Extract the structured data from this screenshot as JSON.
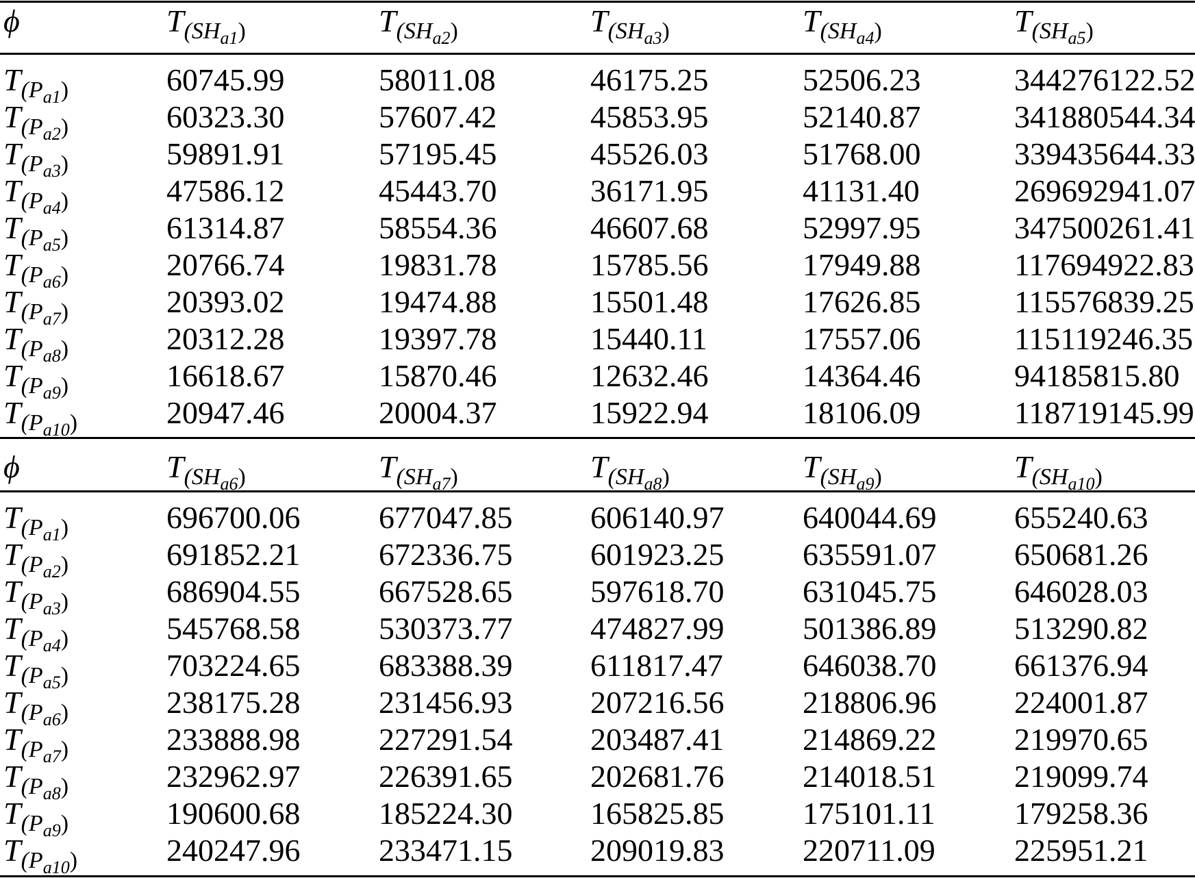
{
  "table": {
    "blocks": [
      {
        "corner": "ϕ",
        "column_headers": [
          {
            "main": "T",
            "open": "(SH",
            "index": "a1",
            "close": ")"
          },
          {
            "main": "T",
            "open": "(SH",
            "index": "a2",
            "close": ")"
          },
          {
            "main": "T",
            "open": "(SH",
            "index": "a3",
            "close": ")"
          },
          {
            "main": "T",
            "open": "(SH",
            "index": "a4",
            "close": ")"
          },
          {
            "main": "T",
            "open": "(SH",
            "index": "a5",
            "close": ")"
          }
        ],
        "rows": [
          {
            "label": {
              "main": "T",
              "open": "(P",
              "index": "a1",
              "close": ")"
            },
            "values": [
              "60745.99",
              "58011.08",
              "46175.25",
              "52506.23",
              "344276122.52"
            ]
          },
          {
            "label": {
              "main": "T",
              "open": "(P",
              "index": "a2",
              "close": ")"
            },
            "values": [
              "60323.30",
              "57607.42",
              "45853.95",
              "52140.87",
              "341880544.34"
            ]
          },
          {
            "label": {
              "main": "T",
              "open": "(P",
              "index": "a3",
              "close": ")"
            },
            "values": [
              "59891.91",
              "57195.45",
              "45526.03",
              "51768.00",
              "339435644.33"
            ]
          },
          {
            "label": {
              "main": "T",
              "open": "(P",
              "index": "a4",
              "close": ")"
            },
            "values": [
              "47586.12",
              "45443.70",
              "36171.95",
              "41131.40",
              "269692941.07"
            ]
          },
          {
            "label": {
              "main": "T",
              "open": "(P",
              "index": "a5",
              "close": ")"
            },
            "values": [
              "61314.87",
              "58554.36",
              "46607.68",
              "52997.95",
              "347500261.41"
            ]
          },
          {
            "label": {
              "main": "T",
              "open": "(P",
              "index": "a6",
              "close": ")"
            },
            "values": [
              "20766.74",
              "19831.78",
              "15785.56",
              "17949.88",
              "117694922.83"
            ]
          },
          {
            "label": {
              "main": "T",
              "open": "(P",
              "index": "a7",
              "close": ")"
            },
            "values": [
              "20393.02",
              "19474.88",
              "15501.48",
              "17626.85",
              "115576839.25"
            ]
          },
          {
            "label": {
              "main": "T",
              "open": "(P",
              "index": "a8",
              "close": ")"
            },
            "values": [
              "20312.28",
              "19397.78",
              "15440.11",
              "17557.06",
              "115119246.35"
            ]
          },
          {
            "label": {
              "main": "T",
              "open": "(P",
              "index": "a9",
              "close": ")"
            },
            "values": [
              "16618.67",
              "15870.46",
              "12632.46",
              "14364.46",
              "94185815.80"
            ]
          },
          {
            "label": {
              "main": "T",
              "open": "(P",
              "index": "a10",
              "close": ")"
            },
            "values": [
              "20947.46",
              "20004.37",
              "15922.94",
              "18106.09",
              "118719145.99"
            ]
          }
        ]
      },
      {
        "corner": "ϕ",
        "column_headers": [
          {
            "main": "T",
            "open": "(SH",
            "index": "a6",
            "close": ")"
          },
          {
            "main": "T",
            "open": "(SH",
            "index": "a7",
            "close": ")"
          },
          {
            "main": "T",
            "open": "(SH",
            "index": "a8",
            "close": ")"
          },
          {
            "main": "T",
            "open": "(SH",
            "index": "a9",
            "close": ")"
          },
          {
            "main": "T",
            "open": "(SH",
            "index": "a10",
            "close": ")"
          }
        ],
        "rows": [
          {
            "label": {
              "main": "T",
              "open": "(P",
              "index": "a1",
              "close": ")"
            },
            "values": [
              "696700.06",
              "677047.85",
              "606140.97",
              "640044.69",
              "655240.63"
            ]
          },
          {
            "label": {
              "main": "T",
              "open": "(P",
              "index": "a2",
              "close": ")"
            },
            "values": [
              "691852.21",
              "672336.75",
              "601923.25",
              "635591.07",
              "650681.26"
            ]
          },
          {
            "label": {
              "main": "T",
              "open": "(P",
              "index": "a3",
              "close": ")"
            },
            "values": [
              "686904.55",
              "667528.65",
              "597618.70",
              "631045.75",
              "646028.03"
            ]
          },
          {
            "label": {
              "main": "T",
              "open": "(P",
              "index": "a4",
              "close": ")"
            },
            "values": [
              "545768.58",
              "530373.77",
              "474827.99",
              "501386.89",
              "513290.82"
            ]
          },
          {
            "label": {
              "main": "T",
              "open": "(P",
              "index": "a5",
              "close": ")"
            },
            "values": [
              "703224.65",
              "683388.39",
              "611817.47",
              "646038.70",
              "661376.94"
            ]
          },
          {
            "label": {
              "main": "T",
              "open": "(P",
              "index": "a6",
              "close": ")"
            },
            "values": [
              "238175.28",
              "231456.93",
              "207216.56",
              "218806.96",
              "224001.87"
            ]
          },
          {
            "label": {
              "main": "T",
              "open": "(P",
              "index": "a7",
              "close": ")"
            },
            "values": [
              "233888.98",
              "227291.54",
              "203487.41",
              "214869.22",
              "219970.65"
            ]
          },
          {
            "label": {
              "main": "T",
              "open": "(P",
              "index": "a8",
              "close": ")"
            },
            "values": [
              "232962.97",
              "226391.65",
              "202681.76",
              "214018.51",
              "219099.74"
            ]
          },
          {
            "label": {
              "main": "T",
              "open": "(P",
              "index": "a9",
              "close": ")"
            },
            "values": [
              "190600.68",
              "185224.30",
              "165825.85",
              "175101.11",
              "179258.36"
            ]
          },
          {
            "label": {
              "main": "T",
              "open": "(P",
              "index": "a10",
              "close": ")"
            },
            "values": [
              "240247.96",
              "233471.15",
              "209019.83",
              "220711.09",
              "225951.21"
            ]
          }
        ]
      }
    ]
  }
}
